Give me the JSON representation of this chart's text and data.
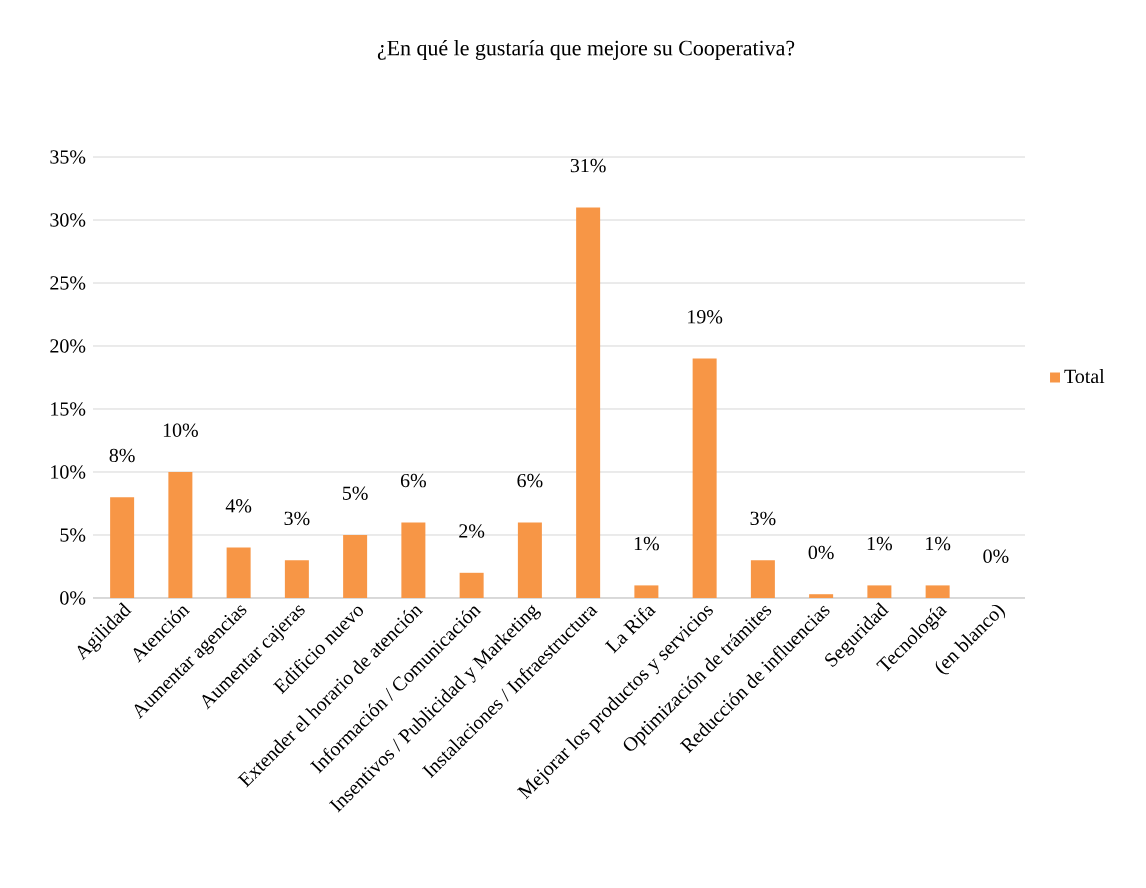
{
  "chart_data": {
    "type": "bar",
    "title": "¿En qué le gustaría que mejore su Cooperativa?",
    "categories": [
      "Agilidad",
      "Atención",
      "Aumentar agencias",
      "Aumentar cajeras",
      "Edificio nuevo",
      "Extender el horario de atención",
      "Información / Comunicación",
      "Insentivos / Publicidad y Marketing",
      "Instalaciones / Infraestructura",
      "La Rifa",
      "Mejorar los productos y servicios",
      "Optimización de trámites",
      "Reducción de influencias",
      "Seguridad",
      "Tecnología",
      "(en blanco)"
    ],
    "series": [
      {
        "name": "Total",
        "color": "#f79646",
        "values": [
          8,
          10,
          4,
          3,
          5,
          6,
          2,
          6,
          31,
          1,
          19,
          3,
          0.3,
          1,
          1,
          0
        ],
        "value_labels": [
          "8%",
          "10%",
          "4%",
          "3%",
          "5%",
          "6%",
          "2%",
          "6%",
          "31%",
          "1%",
          "19%",
          "3%",
          "0%",
          "1%",
          "1%",
          "0%"
        ]
      }
    ],
    "ylim": [
      0,
      35
    ],
    "yticks": [
      {
        "value": 0,
        "label": "0%"
      },
      {
        "value": 5,
        "label": "5%"
      },
      {
        "value": 10,
        "label": "10%"
      },
      {
        "value": 15,
        "label": "15%"
      },
      {
        "value": 20,
        "label": "20%"
      },
      {
        "value": 25,
        "label": "25%"
      },
      {
        "value": 30,
        "label": "30%"
      },
      {
        "value": 35,
        "label": "35%"
      }
    ],
    "grid": "y",
    "legend": "right"
  }
}
